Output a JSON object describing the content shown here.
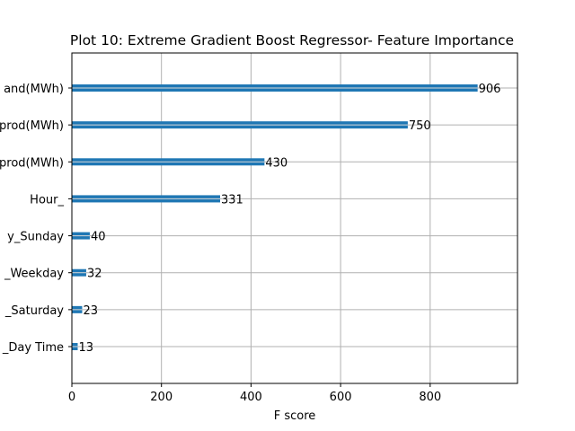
{
  "chart_data": {
    "type": "bar",
    "orientation": "horizontal",
    "title": "Plot 10: Extreme Gradient Boost Regressor- Feature Importance",
    "xlabel": "F score",
    "ylabel": "",
    "xlim": [
      0,
      995
    ],
    "xticks": [
      0,
      200,
      400,
      600,
      800
    ],
    "grid": true,
    "bar_color": "#1f77b4",
    "categories": [
      "and(MWh)",
      "prod(MWh)",
      "prod(MWh)",
      "Hour_",
      "y_Sunday",
      "_Weekday",
      "_Saturday",
      "_Day Time"
    ],
    "values": [
      906,
      750,
      430,
      331,
      40,
      32,
      23,
      13
    ],
    "value_labels": [
      "906",
      "750",
      "430",
      "331",
      "40",
      "32",
      "23",
      "13"
    ]
  }
}
